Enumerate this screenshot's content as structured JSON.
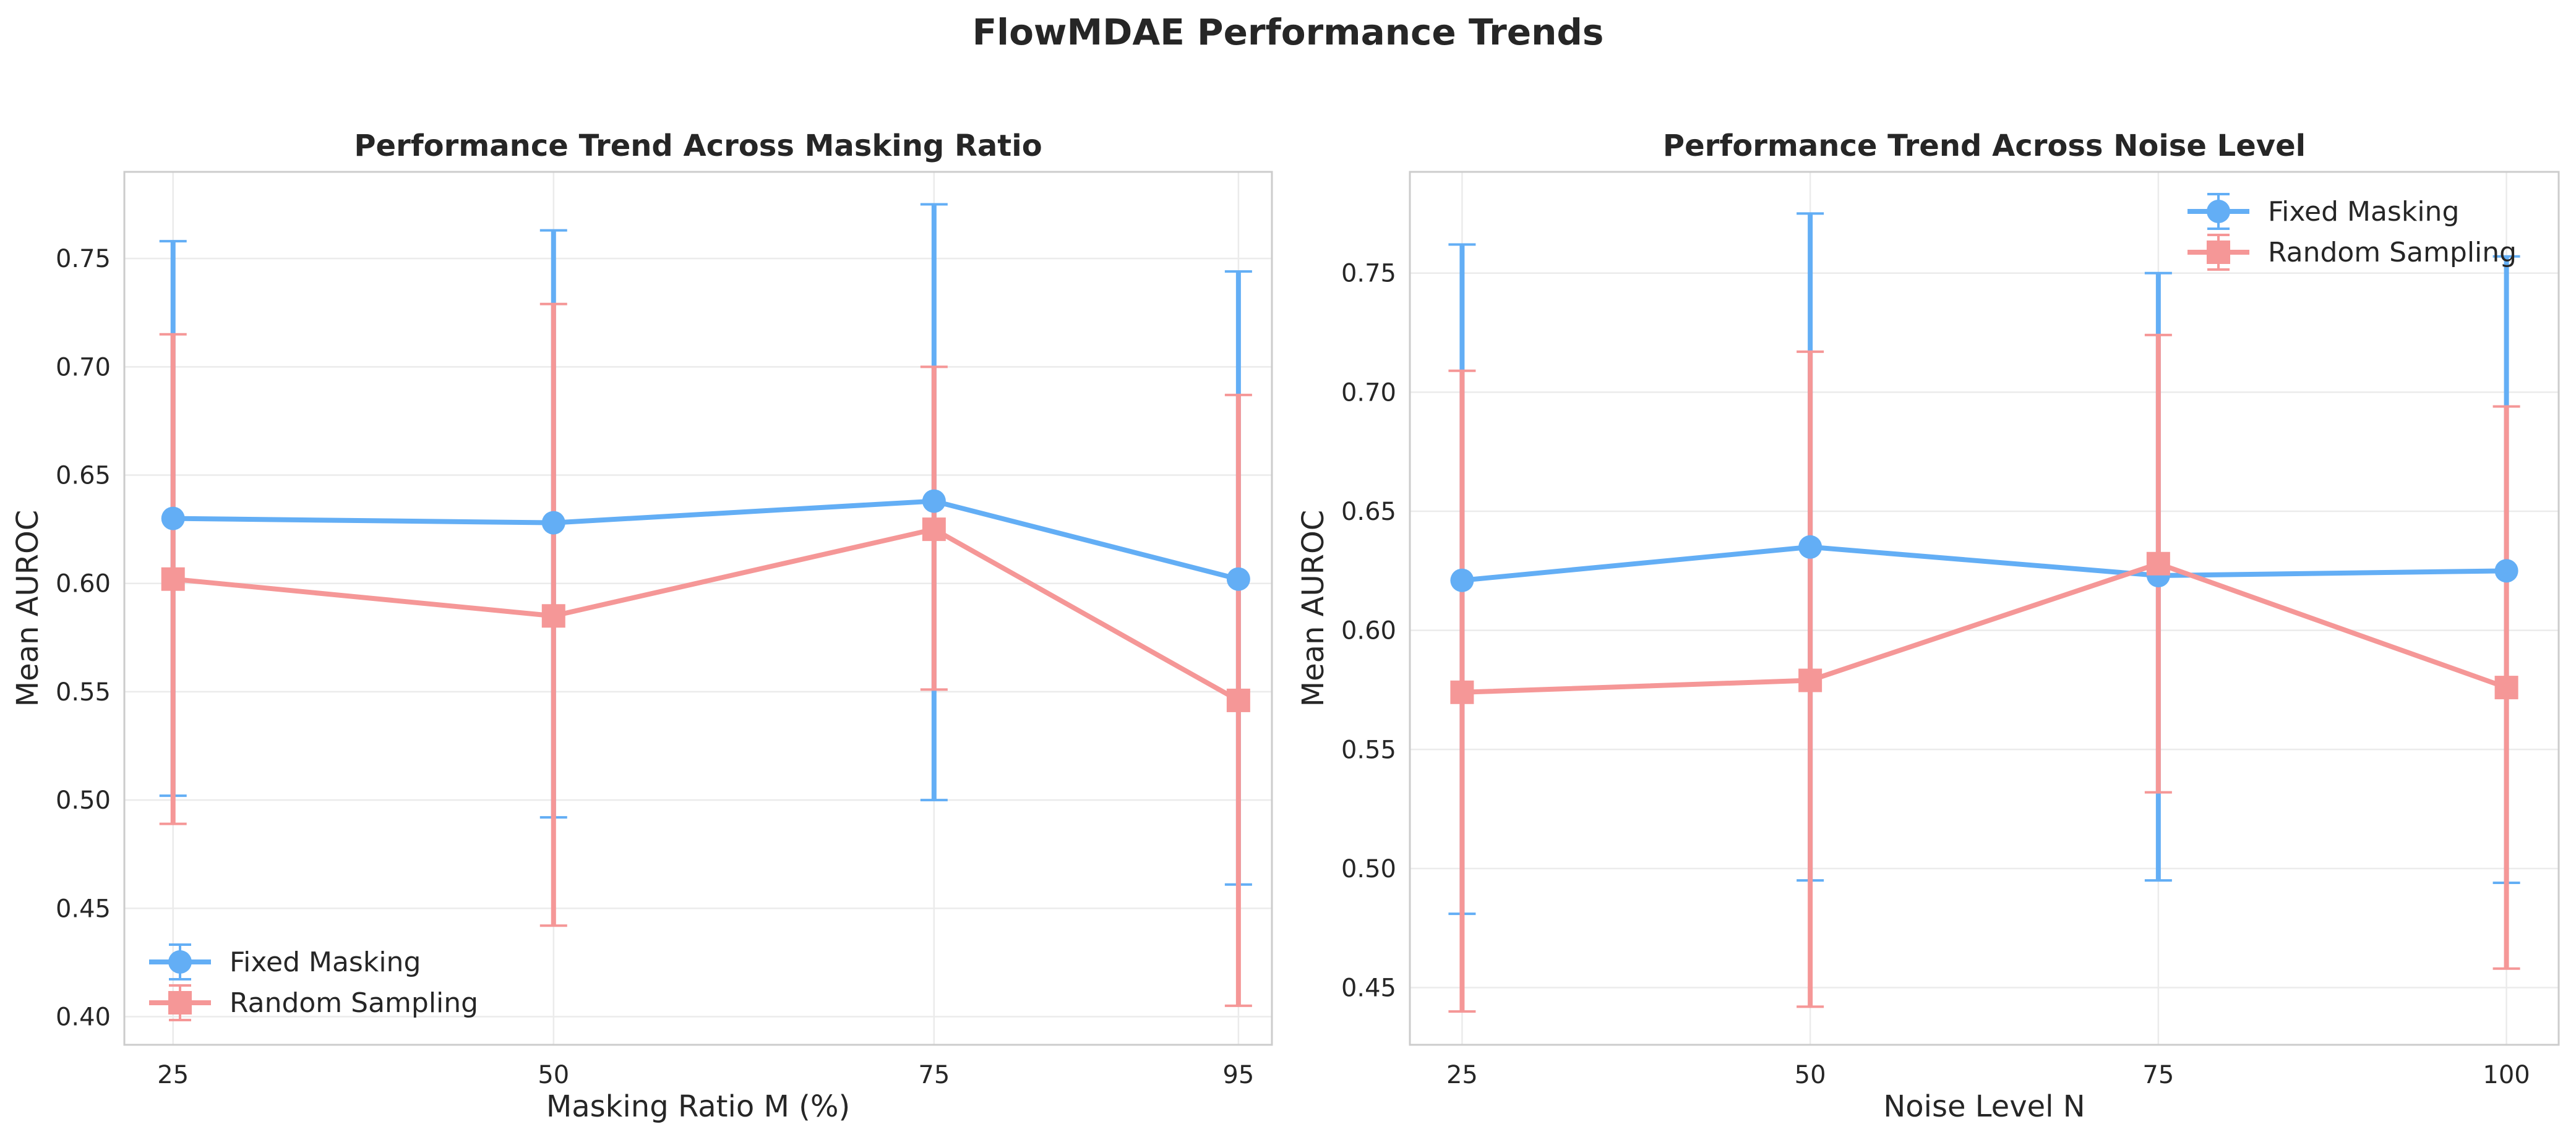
{
  "figure": {
    "suptitle": "FlowMDAE Performance Trends"
  },
  "chart_data": [
    {
      "type": "line",
      "title": "Performance Trend Across Masking Ratio",
      "xlabel": "Masking Ratio M (%)",
      "ylabel": "Mean AUROC",
      "x": [
        25,
        50,
        75,
        95
      ],
      "xticks": [
        "25",
        "50",
        "75",
        "95"
      ],
      "xlim": [
        21.8,
        97.2
      ],
      "ylim": [
        0.387,
        0.79
      ],
      "yticks": [
        0.4,
        0.45,
        0.5,
        0.55,
        0.6,
        0.65,
        0.7,
        0.75
      ],
      "yticklabels": [
        "0.40",
        "0.45",
        "0.50",
        "0.55",
        "0.60",
        "0.65",
        "0.70",
        "0.75"
      ],
      "grid": true,
      "legend_position": "lower-left",
      "series": [
        {
          "name": "Fixed Masking",
          "color": "#63AEF5",
          "marker": "circle",
          "values": [
            0.63,
            0.628,
            0.638,
            0.602
          ],
          "err_low": [
            0.502,
            0.492,
            0.5,
            0.461
          ],
          "err_high": [
            0.758,
            0.763,
            0.775,
            0.744
          ]
        },
        {
          "name": "Random Sampling",
          "color": "#F59797",
          "marker": "square",
          "values": [
            0.602,
            0.585,
            0.625,
            0.546
          ],
          "err_low": [
            0.489,
            0.442,
            0.551,
            0.405
          ],
          "err_high": [
            0.715,
            0.729,
            0.7,
            0.687
          ]
        }
      ]
    },
    {
      "type": "line",
      "title": "Performance Trend Across Noise Level",
      "xlabel": "Noise Level N",
      "ylabel": "Mean AUROC",
      "x": [
        25,
        50,
        75,
        100
      ],
      "xticks": [
        "25",
        "50",
        "75",
        "100"
      ],
      "xlim": [
        21.25,
        103.75
      ],
      "ylim": [
        0.426,
        0.7925
      ],
      "yticks": [
        0.45,
        0.5,
        0.55,
        0.6,
        0.65,
        0.7,
        0.75
      ],
      "yticklabels": [
        "0.45",
        "0.50",
        "0.55",
        "0.60",
        "0.65",
        "0.70",
        "0.75"
      ],
      "grid": true,
      "legend_position": "upper-right",
      "series": [
        {
          "name": "Fixed Masking",
          "color": "#63AEF5",
          "marker": "circle",
          "values": [
            0.621,
            0.635,
            0.623,
            0.625
          ],
          "err_low": [
            0.481,
            0.495,
            0.495,
            0.494
          ],
          "err_high": [
            0.762,
            0.775,
            0.75,
            0.757
          ]
        },
        {
          "name": "Random Sampling",
          "color": "#F59797",
          "marker": "square",
          "values": [
            0.574,
            0.579,
            0.628,
            0.576
          ],
          "err_low": [
            0.44,
            0.442,
            0.532,
            0.458
          ],
          "err_high": [
            0.709,
            0.717,
            0.724,
            0.694
          ]
        }
      ]
    }
  ]
}
